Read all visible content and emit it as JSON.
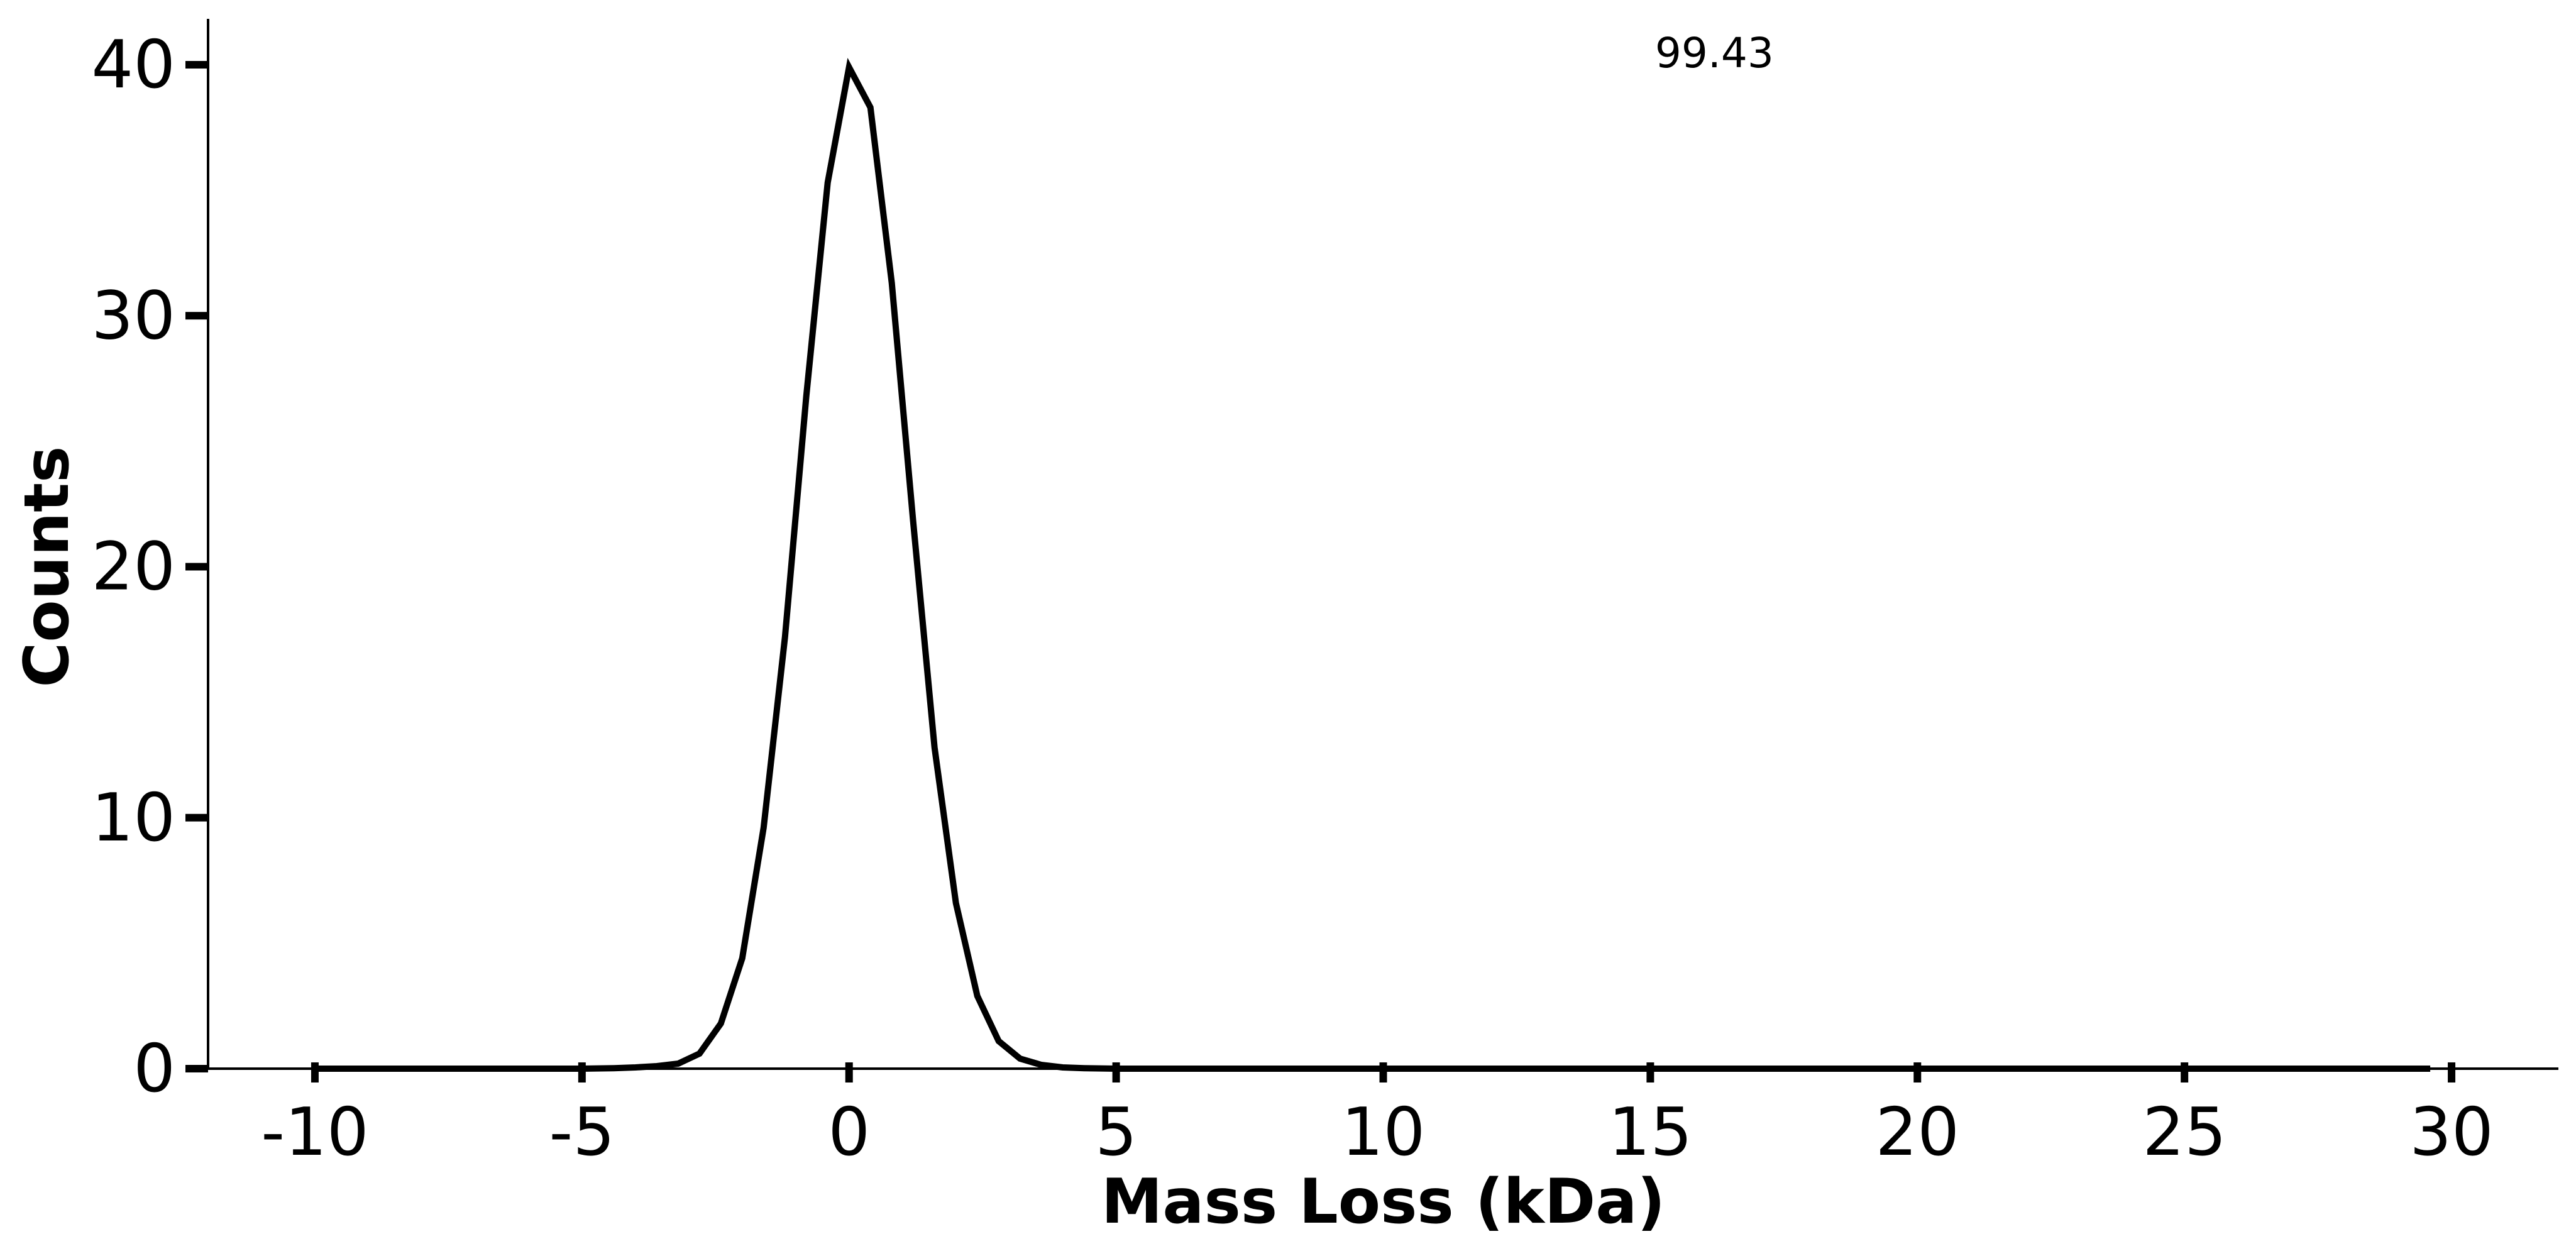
{
  "chart_data": {
    "type": "line",
    "title": "",
    "xlabel": "Mass Loss (kDa)",
    "ylabel": "Counts",
    "xlim": [
      -12,
      32
    ],
    "ylim": [
      0,
      42
    ],
    "x_ticks": [
      -10,
      -5,
      0,
      5,
      10,
      15,
      20,
      25,
      30
    ],
    "x_tick_labels": [
      "-10",
      "-5",
      "0",
      "5",
      "10",
      "15",
      "20",
      "25",
      "30"
    ],
    "y_ticks": [
      0,
      10,
      20,
      30,
      40
    ],
    "y_tick_labels": [
      "0",
      "10",
      "20",
      "30",
      "40"
    ],
    "grid": false,
    "legend": "none",
    "line_color": "#000000",
    "annotation": {
      "text": "99.43",
      "x": 16.2,
      "y": 40.5
    },
    "series": [
      {
        "x": [
          -10.0,
          -9.0,
          -8.0,
          -7.0,
          -6.0,
          -5.0,
          -4.4,
          -4.0,
          -3.6,
          -3.2,
          -2.8,
          -2.4,
          -2.0,
          -1.6,
          -1.2,
          -0.8,
          -0.4,
          0.0,
          0.4,
          0.8,
          1.2,
          1.6,
          2.0,
          2.4,
          2.8,
          3.2,
          3.6,
          4.0,
          4.4,
          5.0,
          6.0,
          8.0,
          10.0,
          15.0,
          20.0,
          25.0,
          29.6
        ],
        "y": [
          0,
          0,
          0,
          0,
          0,
          0,
          0.02,
          0.05,
          0.1,
          0.2,
          0.6,
          1.8,
          4.4,
          9.6,
          17.2,
          26.8,
          35.3,
          39.9,
          38.3,
          31.3,
          21.8,
          12.8,
          6.6,
          2.9,
          1.1,
          0.4,
          0.15,
          0.05,
          0.02,
          0,
          0,
          0,
          0,
          0,
          0,
          0,
          0
        ]
      }
    ]
  }
}
